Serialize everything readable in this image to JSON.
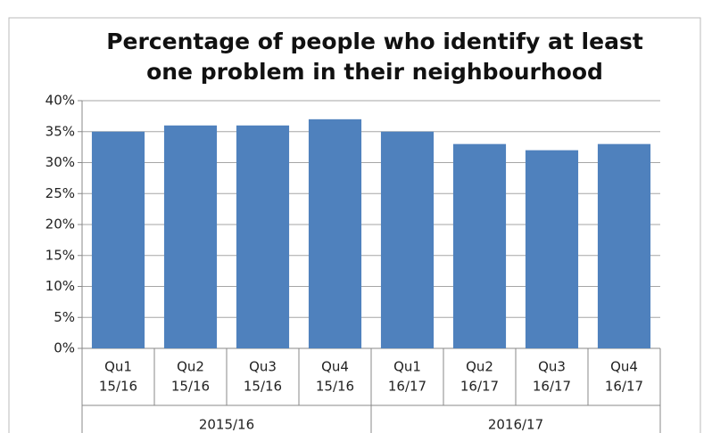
{
  "chart_data": {
    "type": "bar",
    "title": [
      "Percentage of people who identify at least",
      "one problem in their neighbourhood"
    ],
    "categories": [
      [
        "Qu1",
        "15/16"
      ],
      [
        "Qu2",
        "15/16"
      ],
      [
        "Qu3",
        "15/16"
      ],
      [
        "Qu4",
        "15/16"
      ],
      [
        "Qu1",
        "16/17"
      ],
      [
        "Qu2",
        "16/17"
      ],
      [
        "Qu3",
        "16/17"
      ],
      [
        "Qu4",
        "16/17"
      ]
    ],
    "groups": [
      "2015/16",
      "2016/17"
    ],
    "values": [
      35,
      36,
      36,
      37,
      35,
      33,
      32,
      33
    ],
    "color": "#4f81bd",
    "ylim": [
      0,
      40
    ],
    "yticks": [
      {
        "value": 0,
        "label": "0%"
      },
      {
        "value": 5,
        "label": "5%"
      },
      {
        "value": 10,
        "label": "10%"
      },
      {
        "value": 15,
        "label": "15%"
      },
      {
        "value": 20,
        "label": "20%"
      },
      {
        "value": 25,
        "label": "25%"
      },
      {
        "value": 30,
        "label": "30%"
      },
      {
        "value": 35,
        "label": "35%"
      },
      {
        "value": 40,
        "label": "40%"
      }
    ],
    "grid": true
  }
}
